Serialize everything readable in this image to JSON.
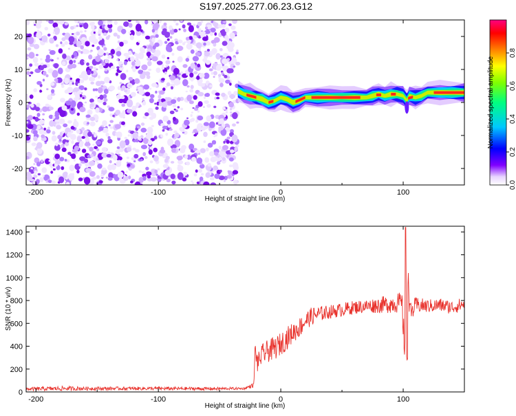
{
  "title": "S197.2025.277.06.23.G12",
  "chart_data": [
    {
      "type": "heatmap",
      "title": "",
      "xlabel": "Height of straight line (km)",
      "ylabel": "Frequency (Hz)",
      "xlim": [
        -208,
        150
      ],
      "ylim": [
        -25,
        25
      ],
      "xticks": [
        -200,
        -100,
        0,
        100
      ],
      "xtick_labels": [
        "-200",
        "-100",
        "0",
        "100"
      ],
      "yticks": [
        -20,
        -10,
        0,
        10,
        20
      ],
      "ytick_labels": [
        "-20",
        "-10",
        "0",
        "10",
        "20"
      ],
      "colorbar": {
        "label": "Normalized spectral amplitude",
        "range": [
          0,
          1
        ],
        "ticks": [
          0.0,
          0.2,
          0.4,
          0.6,
          0.8
        ],
        "tick_labels": [
          "0.0",
          "0.2",
          "0.4",
          "0.6",
          "0.8"
        ],
        "colors": [
          "#ffffff",
          "#e8d4ff",
          "#8000ff",
          "#0000ff",
          "#00c8ff",
          "#00ff80",
          "#ffff00",
          "#ff8000",
          "#ff0000",
          "#ff0080"
        ]
      },
      "noise_region_x": [
        -208,
        -35
      ],
      "signal_track": {
        "x": [
          -35,
          -30,
          -25,
          -20,
          -15,
          -10,
          -5,
          0,
          5,
          10,
          15,
          20,
          30,
          40,
          50,
          60,
          70,
          75,
          80,
          85,
          90,
          95,
          100,
          103,
          105,
          110,
          115,
          120,
          130,
          140,
          150
        ],
        "freq": [
          3.5,
          2.5,
          2.0,
          1.5,
          1.0,
          0.0,
          0.5,
          1.5,
          1.0,
          0.0,
          0.5,
          1.5,
          1.5,
          1.5,
          1.5,
          1.5,
          1.5,
          2.0,
          2.5,
          2.0,
          2.5,
          2.5,
          2.0,
          0.5,
          2.0,
          1.5,
          2.0,
          3.0,
          3.0,
          3.0,
          3.0
        ]
      }
    },
    {
      "type": "line",
      "title": "",
      "xlabel": "Height of straight line (km)",
      "ylabel": "SNR (10 * v/v)",
      "xlim": [
        -208,
        150
      ],
      "ylim": [
        0,
        1450
      ],
      "xticks": [
        -200,
        -100,
        0,
        100
      ],
      "xtick_labels": [
        "-200",
        "-100",
        "0",
        "100"
      ],
      "yticks": [
        0,
        200,
        400,
        600,
        800,
        1000,
        1200,
        1400
      ],
      "ytick_labels": [
        "0",
        "200",
        "400",
        "600",
        "800",
        "1000",
        "1200",
        "1400"
      ],
      "series": [
        {
          "name": "SNR",
          "color": "#e8302a",
          "x": [
            -208,
            -180,
            -150,
            -100,
            -60,
            -30,
            -22,
            -21,
            -19,
            -15,
            -10,
            -5,
            0,
            5,
            10,
            15,
            20,
            25,
            30,
            40,
            50,
            60,
            70,
            80,
            90,
            95,
            99,
            101,
            102,
            103,
            104,
            106,
            110,
            120,
            130,
            140,
            150
          ],
          "y": [
            25,
            30,
            30,
            30,
            28,
            30,
            60,
            380,
            250,
            330,
            360,
            380,
            420,
            470,
            520,
            560,
            620,
            660,
            680,
            700,
            720,
            740,
            750,
            760,
            770,
            780,
            770,
            420,
            1440,
            280,
            900,
            680,
            760,
            750,
            760,
            740,
            770
          ],
          "noise_amplitude": [
            15,
            20,
            15,
            15,
            15,
            10,
            20,
            60,
            80,
            90,
            100,
            100,
            100,
            100,
            90,
            90,
            80,
            80,
            70,
            60,
            60,
            60,
            60,
            70,
            80,
            90,
            100,
            150,
            0,
            80,
            150,
            100,
            70,
            60,
            60,
            60,
            60
          ]
        }
      ]
    }
  ]
}
